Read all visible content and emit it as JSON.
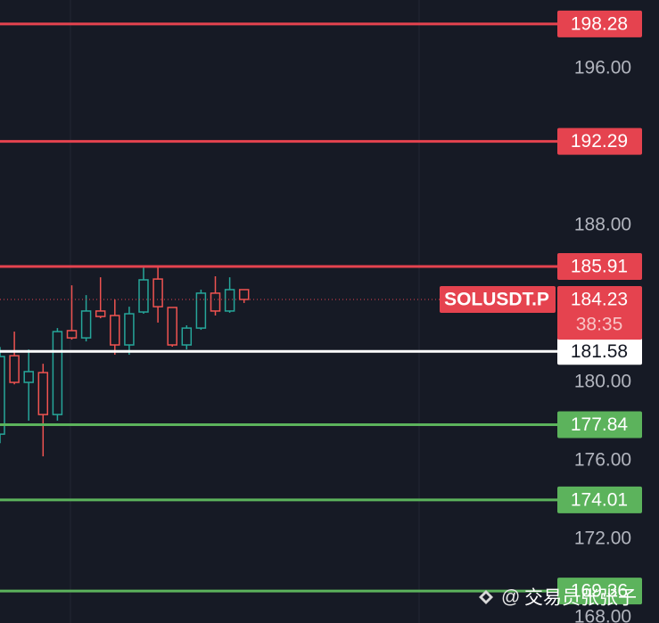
{
  "chart_data": {
    "type": "candlestick",
    "categories": [
      null,
      null,
      null,
      null,
      null,
      null,
      null,
      null,
      null,
      null,
      null,
      null,
      null,
      null,
      null,
      null,
      null,
      null
    ],
    "open": [
      177.36,
      181.36,
      180.0,
      180.5,
      178.36,
      182.64,
      182.27,
      183.64,
      183.41,
      181.91,
      183.59,
      185.27,
      183.82,
      181.91,
      182.77,
      184.55,
      183.64,
      184.73
    ],
    "high": [
      181.8,
      182.59,
      181.68,
      180.95,
      182.77,
      184.95,
      184.45,
      185.36,
      184.23,
      183.86,
      185.91,
      185.91,
      183.82,
      182.91,
      184.73,
      185.41,
      185.36,
      184.73
    ],
    "low": [
      176.9,
      179.9,
      178.05,
      176.23,
      178.05,
      182.18,
      182.09,
      183.27,
      181.41,
      181.41,
      183.5,
      183.05,
      181.82,
      181.68,
      182.68,
      183.41,
      183.55,
      184.05
    ],
    "close": [
      181.32,
      180.0,
      180.55,
      178.36,
      182.59,
      182.27,
      183.64,
      183.36,
      181.91,
      183.5,
      185.23,
      183.86,
      181.91,
      182.77,
      184.55,
      183.64,
      184.73,
      184.23
    ],
    "up_color": "#26a69a",
    "down_color": "#ef5350",
    "ylim": [
      167.73,
      199.5
    ],
    "yticks": [
      {
        "value": 196,
        "label": "196.00"
      },
      {
        "value": 188,
        "label": "188.00"
      },
      {
        "value": 180,
        "label": "180.00"
      },
      {
        "value": 176,
        "label": "176.00"
      },
      {
        "value": 172,
        "label": "172.00"
      },
      {
        "value": 168,
        "label": "168.00"
      }
    ],
    "levels": [
      {
        "value": 198.28,
        "color": "#e5434f"
      },
      {
        "value": 192.29,
        "color": "#e5434f"
      },
      {
        "value": 185.91,
        "color": "#e5434f"
      },
      {
        "value": 181.58,
        "color": "#ffffff"
      },
      {
        "value": 177.84,
        "color": "#5cb35c"
      },
      {
        "value": 174.01,
        "color": "#5cb35c"
      },
      {
        "value": 169.36,
        "color": "#5cb35c"
      }
    ],
    "current_price": {
      "symbol": "SOLUSDT.P",
      "value": 184.23,
      "countdown": "38:35",
      "color": "#e5434f"
    }
  },
  "watermark": "交易员张张子"
}
